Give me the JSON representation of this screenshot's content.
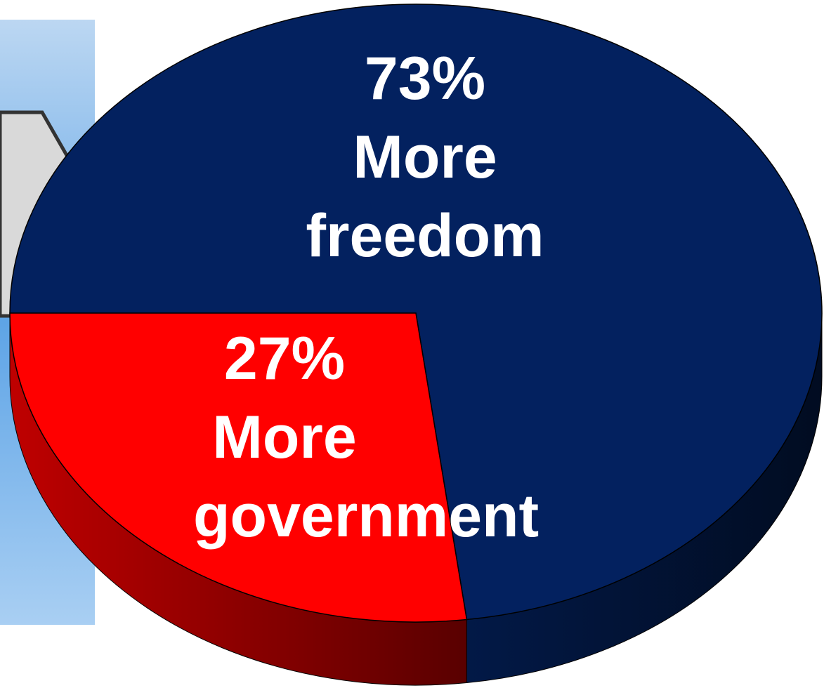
{
  "chart_data": {
    "type": "pie",
    "categories": [
      "More freedom",
      "More government"
    ],
    "values": [
      73,
      27
    ],
    "value_labels": [
      "73%",
      "27%"
    ],
    "colors": [
      "#03215f",
      "#ff0000"
    ]
  }
}
